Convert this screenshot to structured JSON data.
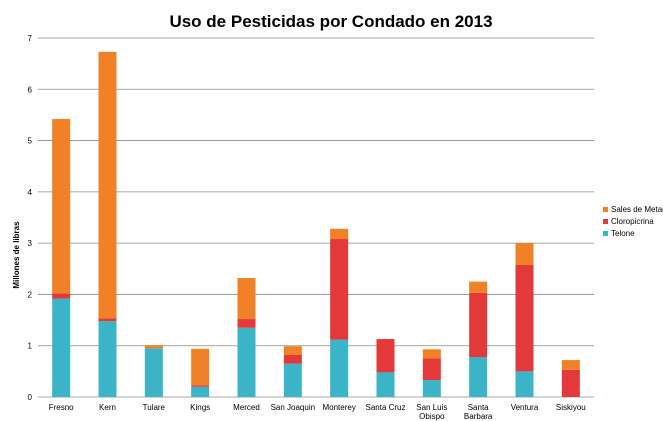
{
  "chart_data": {
    "type": "bar",
    "stacked": true,
    "title": "Uso de Pesticidas por Condado en 2013",
    "xlabel": "",
    "ylabel": "Millones de libras",
    "ylim": [
      0,
      7
    ],
    "yticks": [
      "0",
      "1",
      "2",
      "3",
      "4",
      "5",
      "6",
      "7"
    ],
    "grid": true,
    "legend_position": "right",
    "categories": [
      "Fresno",
      "Kern",
      "Tulare",
      "Kings",
      "Merced",
      "San Joaquin",
      "Monterey",
      "Santa Cruz",
      "San Luis Obispo",
      "Santa Barbara",
      "Ventura",
      "Siskiyou"
    ],
    "series": [
      {
        "name": "Telone",
        "color": "#3cb4c8",
        "values": [
          1.92,
          1.48,
          0.95,
          0.2,
          1.35,
          0.65,
          1.12,
          0.48,
          0.33,
          0.78,
          0.5,
          0
        ]
      },
      {
        "name": "Cloropicrina",
        "color": "#e3393a",
        "values": [
          0.1,
          0.05,
          0,
          0.03,
          0.17,
          0.17,
          1.96,
          0.65,
          0.42,
          1.25,
          2.08,
          0.53
        ]
      },
      {
        "name": "Sales de Metam",
        "color": "#f08127",
        "values": [
          3.4,
          5.2,
          0.06,
          0.71,
          0.8,
          0.17,
          0.2,
          0,
          0.18,
          0.22,
          0.42,
          0.19
        ]
      }
    ],
    "legend_labels": [
      "Sales de Metam",
      "Cloropicrina",
      "Telone"
    ],
    "category_labels_wrapped": [
      [
        "Fresno"
      ],
      [
        "Kern"
      ],
      [
        "Tulare"
      ],
      [
        "Kings"
      ],
      [
        "Merced"
      ],
      [
        "San Joaquin"
      ],
      [
        "Monterey"
      ],
      [
        "Santa Cruz"
      ],
      [
        "San Luis",
        "Obispo"
      ],
      [
        "Santa",
        "Barbara"
      ],
      [
        "Ventura"
      ],
      [
        "Siskiyou"
      ]
    ]
  }
}
